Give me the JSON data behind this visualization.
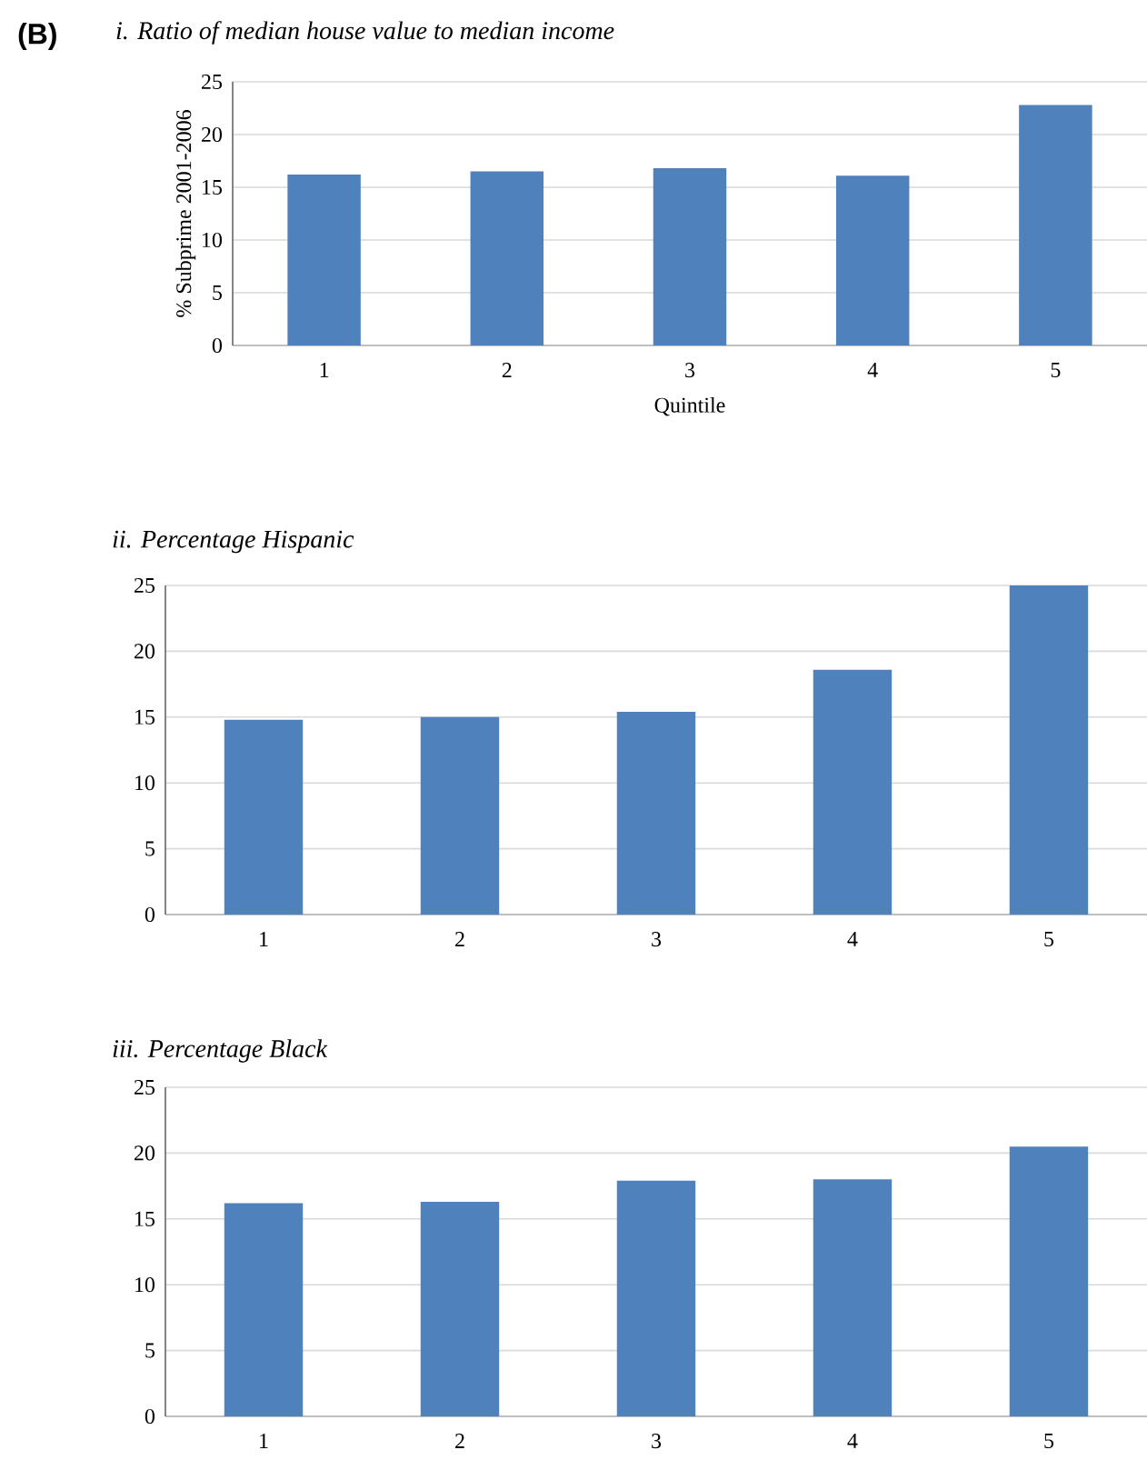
{
  "chart_data": [
    {
      "type": "bar",
      "title": "i.        Ratio of median house value to median income",
      "ylabel": "% Subprime 2001-2006",
      "xlabel": "Quintile",
      "annotations": [
        "(B)"
      ],
      "categories": [
        "1",
        "2",
        "3",
        "4",
        "5"
      ],
      "values": [
        16.2,
        16.5,
        16.8,
        16.1,
        22.8
      ],
      "color": "#4f81bd",
      "ylim": [
        0,
        25
      ],
      "yticks": [
        0,
        5,
        10,
        15,
        20,
        25
      ],
      "grid": "y"
    },
    {
      "type": "bar",
      "title": "ii. Percentage Hispanic",
      "categories": [
        "1",
        "2",
        "3",
        "4",
        "5"
      ],
      "values": [
        14.8,
        15.0,
        15.4,
        18.6,
        25.0
      ],
      "color": "#4f81bd",
      "ylim": [
        0,
        25
      ],
      "yticks": [
        0,
        5,
        10,
        15,
        20,
        25
      ],
      "grid": "y"
    },
    {
      "type": "bar",
      "title": "iii.      Percentage Black",
      "categories": [
        "1",
        "2",
        "3",
        "4",
        "5"
      ],
      "values": [
        16.2,
        16.3,
        17.9,
        18.0,
        20.5
      ],
      "color": "#4f81bd",
      "ylim": [
        0,
        25
      ],
      "yticks": [
        0,
        5,
        10,
        15,
        20,
        25
      ],
      "grid": "y"
    }
  ]
}
